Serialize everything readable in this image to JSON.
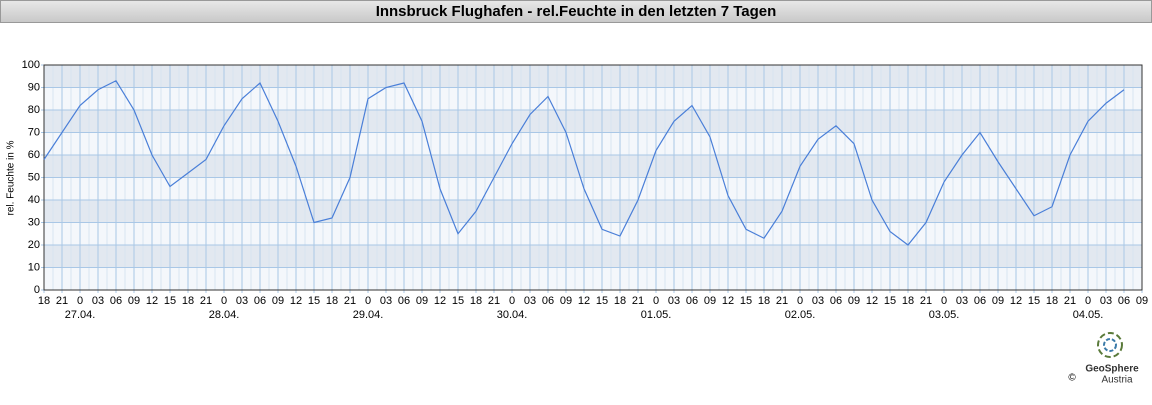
{
  "chart_data": {
    "type": "line",
    "title": "Innsbruck Flughafen - rel.Feuchte in den letzten 7 Tagen",
    "y_label": "rel. Feuchte in %",
    "categories": [
      "18",
      "21",
      "0",
      "03",
      "06",
      "09",
      "12",
      "15",
      "18",
      "21",
      "0",
      "03",
      "06",
      "09",
      "12",
      "15",
      "18",
      "21",
      "0",
      "03",
      "06",
      "09",
      "12",
      "15",
      "18",
      "21",
      "0",
      "03",
      "06",
      "09",
      "12",
      "15",
      "18",
      "21",
      "0",
      "03",
      "06",
      "09",
      "12",
      "15",
      "18",
      "21",
      "0",
      "03",
      "06",
      "09",
      "12",
      "15",
      "18",
      "21",
      "0",
      "03",
      "06",
      "09",
      "12",
      "15",
      "18",
      "21",
      "0",
      "03",
      "06",
      "09"
    ],
    "date_labels": [
      null,
      null,
      "27.04.",
      null,
      null,
      null,
      null,
      null,
      null,
      null,
      "28.04.",
      null,
      null,
      null,
      null,
      null,
      null,
      null,
      "29.04.",
      null,
      null,
      null,
      null,
      null,
      null,
      null,
      "30.04.",
      null,
      null,
      null,
      null,
      null,
      null,
      null,
      "01.05.",
      null,
      null,
      null,
      null,
      null,
      null,
      null,
      "02.05.",
      null,
      null,
      null,
      null,
      null,
      null,
      null,
      "03.05.",
      null,
      null,
      null,
      null,
      null,
      null,
      null,
      "04.05.",
      null,
      null,
      null
    ],
    "series": [
      {
        "name": "rel. Feuchte",
        "color": "#4a7fd8",
        "values": [
          58,
          70,
          82,
          89,
          93,
          80,
          60,
          46,
          52,
          58,
          73,
          85,
          92,
          75,
          55,
          30,
          32,
          50,
          85,
          90,
          92,
          75,
          45,
          25,
          35,
          50,
          65,
          78,
          86,
          70,
          45,
          27,
          24,
          40,
          62,
          75,
          82,
          68,
          42,
          27,
          23,
          35,
          55,
          67,
          73,
          65,
          40,
          26,
          20,
          30,
          48,
          60,
          70,
          57,
          45,
          33,
          37,
          60,
          75,
          83,
          89,
          null
        ]
      }
    ],
    "ylim": [
      0,
      100
    ],
    "yticks": [
      0,
      10,
      20,
      30,
      40,
      50,
      60,
      70,
      80,
      90,
      100
    ],
    "grid": true,
    "logo": {
      "name": "GeoSphere",
      "sub": "Austria",
      "copyright": "©"
    }
  }
}
